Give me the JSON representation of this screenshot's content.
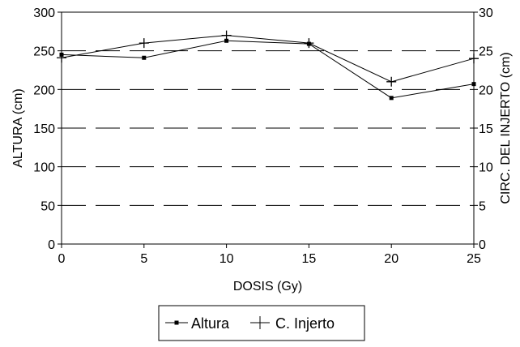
{
  "chart_data": {
    "type": "line",
    "xlabel": "DOSIS (Gy)",
    "ylabel_left": "ALTURA (cm)",
    "ylabel_right": "CIRC. DEL INJERTO (cm)",
    "x": [
      0,
      5,
      10,
      15,
      20,
      25
    ],
    "xlim": [
      0,
      25
    ],
    "xticks": [
      0,
      5,
      10,
      15,
      20,
      25
    ],
    "ylim_left": [
      0,
      300
    ],
    "yticks_left": [
      0,
      50,
      100,
      150,
      200,
      250,
      300
    ],
    "ylim_right": [
      0,
      30
    ],
    "yticks_right": [
      0,
      5,
      10,
      15,
      20,
      25,
      30
    ],
    "grid": "horizontal dashed",
    "legend_position": "bottom",
    "series": [
      {
        "name": "Altura",
        "axis": "left",
        "marker": "dot",
        "values": [
          245,
          241,
          263,
          259,
          189,
          207
        ]
      },
      {
        "name": "C. Injerto",
        "axis": "right",
        "marker": "plus",
        "values": [
          24.1,
          26.0,
          27.0,
          26.0,
          21.0,
          24.0
        ]
      }
    ]
  }
}
